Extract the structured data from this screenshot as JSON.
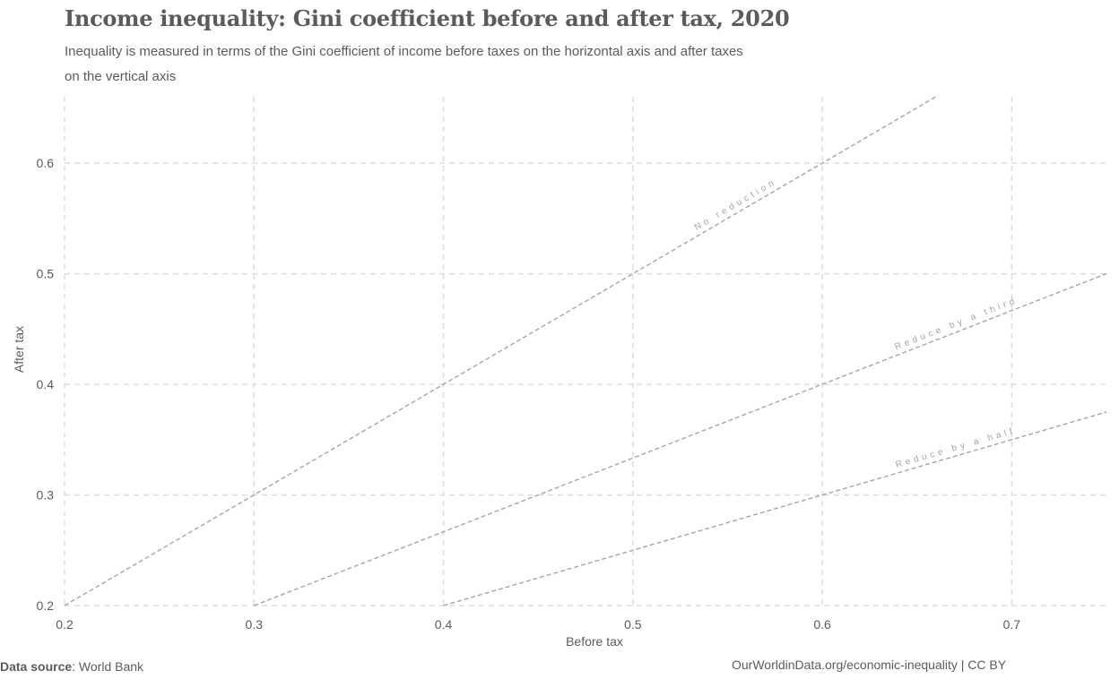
{
  "header": {
    "title": "Income inequality: Gini coefficient before and after tax, 2020",
    "subtitle": "Inequality is measured in terms of the Gini coefficient of income before taxes on the horizontal axis and after taxes on the vertical axis"
  },
  "footer": {
    "source_label": "Data source",
    "source_value": ": World Bank",
    "credit": "OurWorldinData.org/economic-inequality | CC BY"
  },
  "colors": {
    "text": "#5b5b5b",
    "grid": "#dddddd",
    "reference_line": "#a0a0a0",
    "reference_label": "#a5a5a5"
  },
  "chart_data": {
    "type": "scatter",
    "title": "Income inequality: Gini coefficient before and after tax, 2020",
    "xlabel": "Before tax",
    "ylabel": "After tax",
    "xlim": [
      0.2,
      0.75
    ],
    "ylim": [
      0.2,
      0.66
    ],
    "xticks": [
      0.2,
      0.3,
      0.4,
      0.5,
      0.6,
      0.7
    ],
    "yticks": [
      0.2,
      0.3,
      0.4,
      0.5,
      0.6
    ],
    "grid": true,
    "grid_style": "dashed",
    "series": [],
    "reference_lines": [
      {
        "label": "No reduction",
        "slope": 1.0
      },
      {
        "label": "Reduce by a third",
        "slope": 0.6667
      },
      {
        "label": "Reduce by a half",
        "slope": 0.5
      }
    ]
  }
}
